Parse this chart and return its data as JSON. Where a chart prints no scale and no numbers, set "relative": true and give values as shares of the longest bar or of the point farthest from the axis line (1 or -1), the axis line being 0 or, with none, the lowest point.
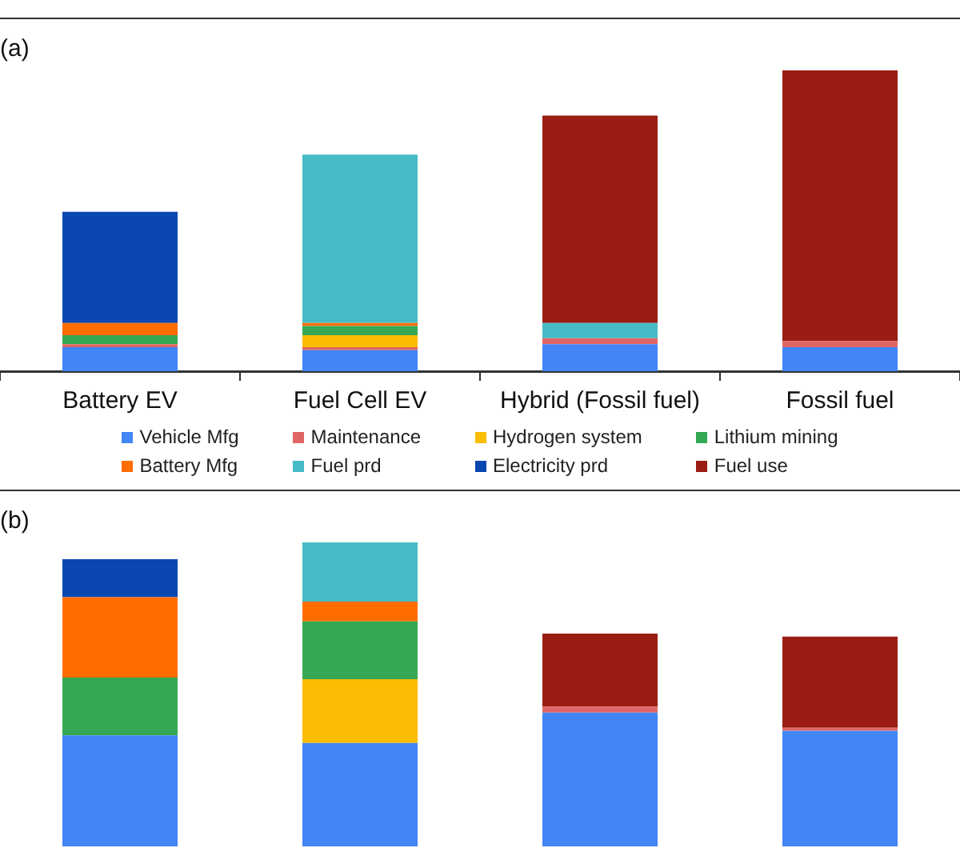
{
  "chart_data": [
    {
      "type": "bar",
      "title": "(a)",
      "categories": [
        "Battery EV",
        "Fuel Cell EV",
        "Hybrid (Fossil fuel)",
        "Fossil fuel"
      ],
      "stacked": true,
      "relative": true,
      "legend": "bottom",
      "tick_labels": "x",
      "series": [
        {
          "name": "Vehicle Mfg",
          "color": "#4285f4",
          "values": [
            0.08,
            0.07,
            0.09,
            0.08
          ]
        },
        {
          "name": "Maintenance",
          "color": "#e06666",
          "values": [
            0.01,
            0.01,
            0.02,
            0.02
          ]
        },
        {
          "name": "Hydrogen system",
          "color": "#fbbc04",
          "values": [
            0,
            0.04,
            0,
            0
          ]
        },
        {
          "name": "Lithium mining",
          "color": "#34a853",
          "values": [
            0.03,
            0.03,
            0,
            0
          ]
        },
        {
          "name": "Battery Mfg",
          "color": "#ff6d01",
          "values": [
            0.04,
            0.01,
            0,
            0
          ]
        },
        {
          "name": "Fuel prd",
          "color": "#46bdc6",
          "values": [
            0,
            0.56,
            0.05,
            0
          ]
        },
        {
          "name": "Electricity prd",
          "color": "#0b47b0",
          "values": [
            0.37,
            0,
            0,
            0
          ]
        },
        {
          "name": "Fuel use",
          "color": "#9a1c12",
          "values": [
            0,
            0,
            0.69,
            0.9
          ]
        }
      ]
    },
    {
      "type": "bar",
      "title": "(b)",
      "categories": [
        null,
        null,
        null,
        null
      ],
      "stacked": true,
      "relative": true,
      "tick_labels": false,
      "series": [
        {
          "color": "#4285f4",
          "values": [
            0.365,
            0.34,
            0.44,
            0.38
          ]
        },
        {
          "color": "#e06666",
          "values": [
            0,
            0,
            0.02,
            0.01
          ]
        },
        {
          "color": "#fbbc04",
          "values": [
            0,
            0.21,
            0,
            0
          ]
        },
        {
          "color": "#34a853",
          "values": [
            0.19,
            0.19,
            0,
            0
          ]
        },
        {
          "color": "#ff6d01",
          "values": [
            0.265,
            0.065,
            0,
            0
          ]
        },
        {
          "color": "#46bdc6",
          "values": [
            0,
            0.195,
            0,
            0
          ]
        },
        {
          "color": "#0b47b0",
          "values": [
            0.125,
            0,
            0,
            0
          ]
        },
        {
          "color": "#9a1c12",
          "values": [
            0,
            0,
            0.24,
            0.3
          ]
        }
      ]
    }
  ]
}
